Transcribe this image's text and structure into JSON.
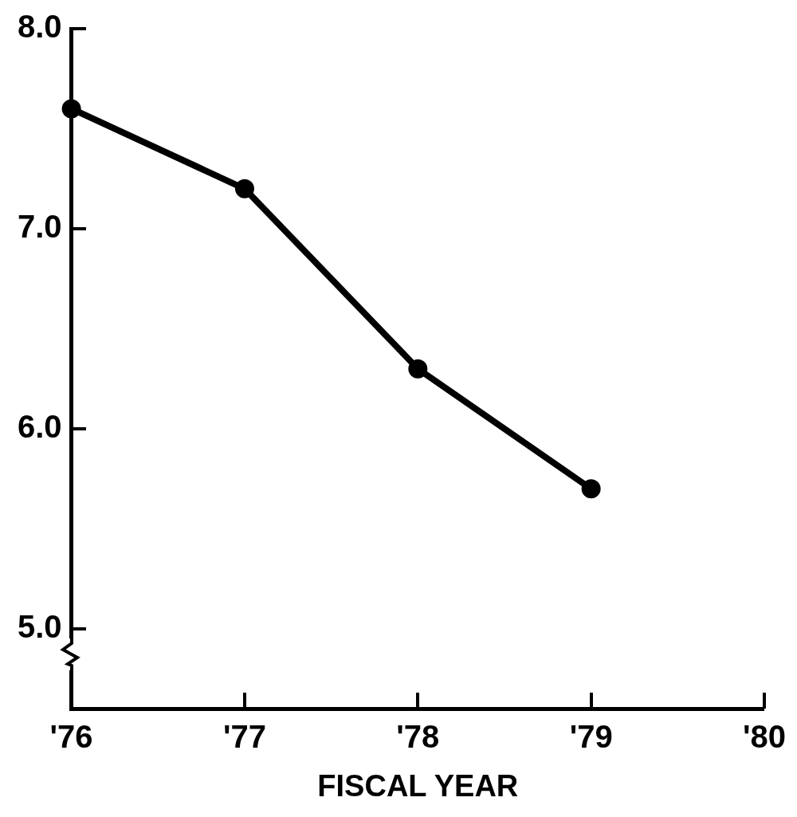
{
  "chart_data": {
    "type": "line",
    "xlabel": "FISCAL YEAR",
    "categories": [
      "'76",
      "'77",
      "'78",
      "'79",
      "'80"
    ],
    "series": [
      {
        "color": "#000000",
        "values": [
          7.6,
          7.2,
          6.3,
          5.7,
          null
        ]
      }
    ],
    "ylim": [
      4.6,
      8.0
    ],
    "yticks": [
      {
        "value": 5,
        "label": "5.0"
      },
      {
        "value": 6,
        "label": "6.0"
      },
      {
        "value": 7,
        "label": "7.0"
      },
      {
        "value": 8,
        "label": "8.0"
      }
    ],
    "grid": false,
    "legend": false,
    "marker": "circle",
    "line_style": "solid"
  }
}
